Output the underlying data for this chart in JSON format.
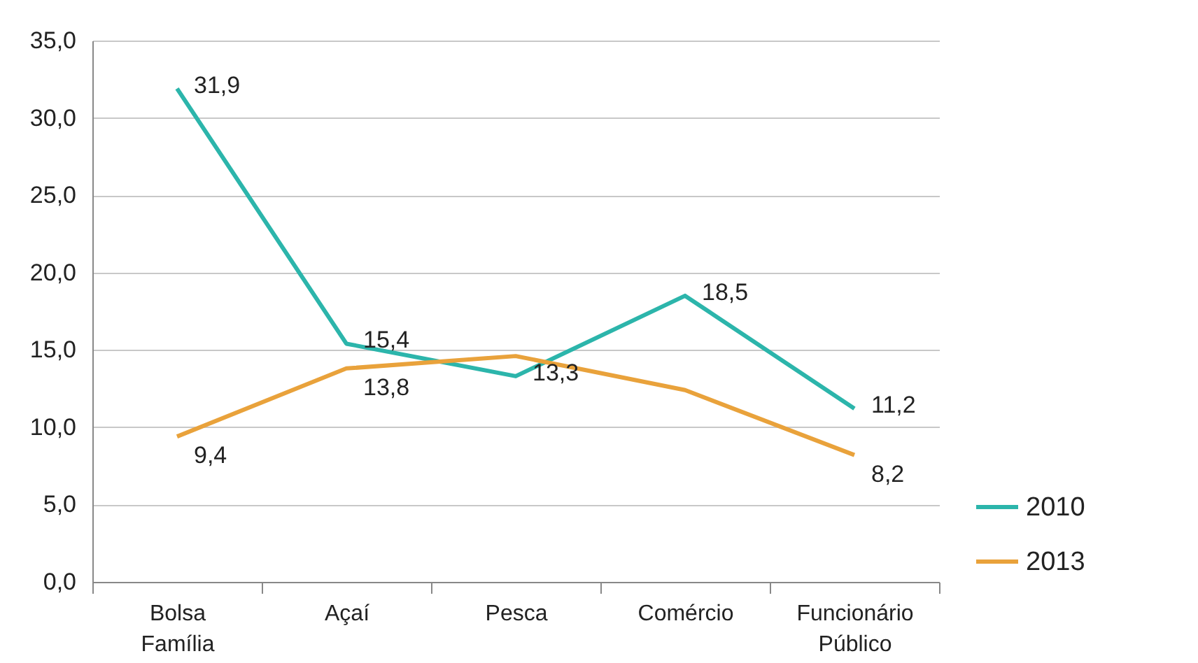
{
  "chart_data": {
    "type": "line",
    "categories": [
      "Bolsa Família",
      "Açaí",
      "Pesca",
      "Comércio",
      "Funcionário Público"
    ],
    "series": [
      {
        "name": "2010",
        "color": "#2cb5ab",
        "values": [
          31.9,
          15.4,
          13.3,
          18.5,
          11.2
        ],
        "value_labels": [
          "31,9",
          "15,4",
          "13,3",
          "18,5",
          "11,2"
        ]
      },
      {
        "name": "2013",
        "color": "#e9a23b",
        "values": [
          9.4,
          13.8,
          14.6,
          12.4,
          8.2
        ],
        "value_labels": [
          "9,4",
          "13,8",
          null,
          null,
          "8,2"
        ]
      }
    ],
    "ylim": [
      0,
      35
    ],
    "yticks": [
      {
        "value": 0,
        "label": "0,0"
      },
      {
        "value": 5,
        "label": "5,0"
      },
      {
        "value": 10,
        "label": "10,0"
      },
      {
        "value": 15,
        "label": "15,0"
      },
      {
        "value": 20,
        "label": "20,0"
      },
      {
        "value": 25,
        "label": "25,0"
      },
      {
        "value": 30,
        "label": "30,0"
      },
      {
        "value": 35,
        "label": "35,0"
      }
    ],
    "grid": "y",
    "legend": "bottom right",
    "marker": "none",
    "line_style": "solid"
  }
}
